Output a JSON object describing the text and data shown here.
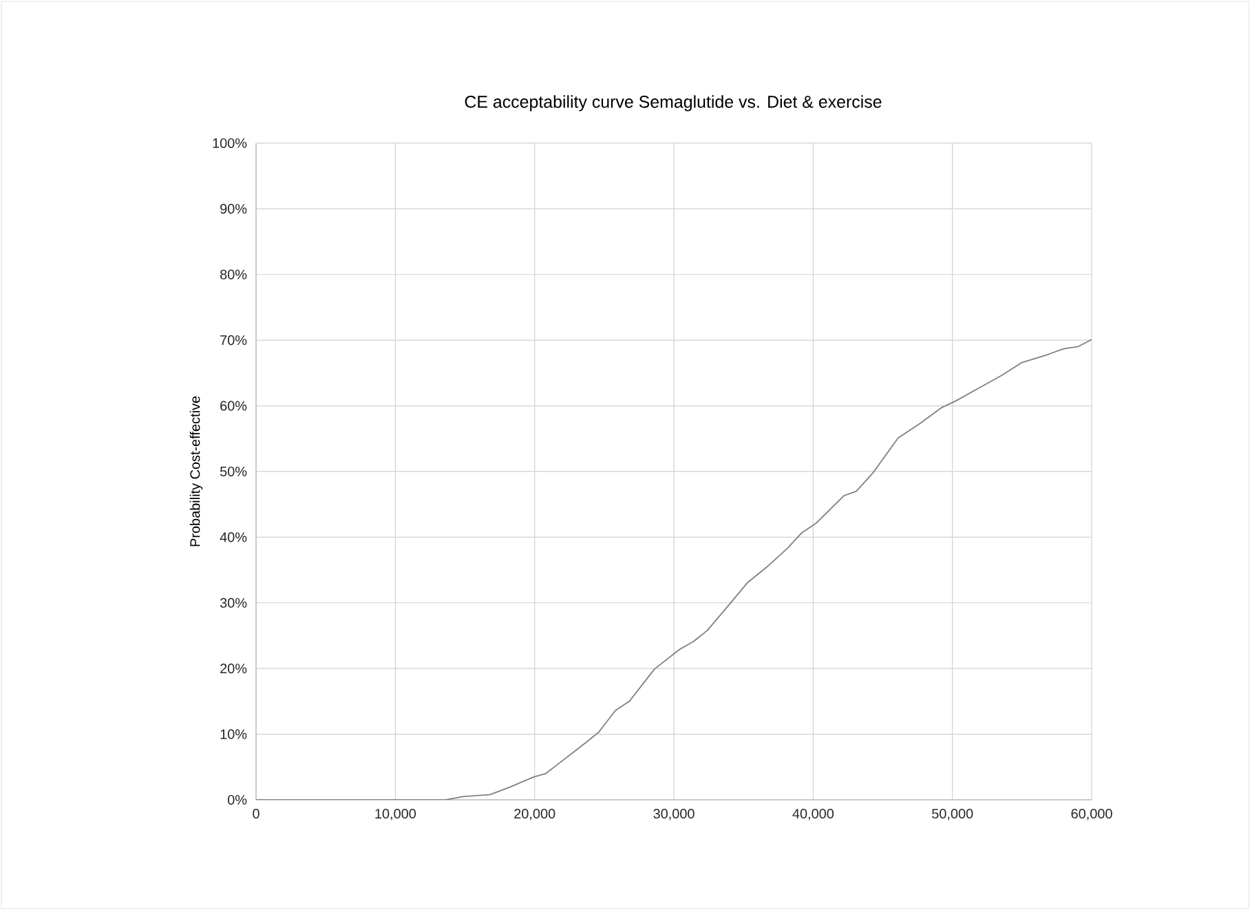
{
  "chart_data": {
    "type": "line",
    "title": "CE acceptability curve Semaglutide vs. Diet & exercise",
    "ylabel": "Probability Cost-effective",
    "xlim": [
      0,
      60000
    ],
    "xticks": [
      {
        "value": 0,
        "label": "0"
      },
      {
        "value": 10000,
        "label": "10,000"
      },
      {
        "value": 20000,
        "label": "20,000"
      },
      {
        "value": 30000,
        "label": "30,000"
      },
      {
        "value": 40000,
        "label": "40,000"
      },
      {
        "value": 50000,
        "label": "50,000"
      },
      {
        "value": 60000,
        "label": "60,000"
      }
    ],
    "ylim": [
      0,
      100
    ],
    "yticks": [
      {
        "value": 0,
        "label": "0%"
      },
      {
        "value": 10,
        "label": "10%"
      },
      {
        "value": 20,
        "label": "20%"
      },
      {
        "value": 30,
        "label": "30%"
      },
      {
        "value": 40,
        "label": "40%"
      },
      {
        "value": 50,
        "label": "50%"
      },
      {
        "value": 60,
        "label": "60%"
      },
      {
        "value": 70,
        "label": "70%"
      },
      {
        "value": 80,
        "label": "80%"
      },
      {
        "value": 90,
        "label": "90%"
      },
      {
        "value": 100,
        "label": "100%"
      }
    ],
    "grid": true,
    "marker": "none",
    "line_style": "solid",
    "series": [
      {
        "color": "#7f7f7f",
        "x": [
          0,
          13600,
          14900,
          16800,
          18300,
          19950,
          20800,
          21600,
          23600,
          24600,
          25800,
          26800,
          28600,
          30400,
          31400,
          32400,
          34000,
          35300,
          36700,
          38200,
          39200,
          40200,
          42200,
          43100,
          44300,
          46100,
          47600,
          49200,
          50200,
          51900,
          53500,
          55000,
          56700,
          58000,
          59000,
          60000
        ],
        "values": [
          0,
          0,
          0.5,
          0.8,
          2.0,
          3.5,
          4.0,
          5.3,
          8.6,
          10.3,
          13.6,
          15.0,
          19.9,
          22.9,
          24.1,
          25.8,
          29.8,
          33.1,
          35.5,
          38.4,
          40.7,
          42.1,
          46.3,
          47.0,
          49.8,
          55.1,
          57.2,
          59.7,
          60.7,
          62.7,
          64.6,
          66.6,
          67.7,
          68.7,
          69.0,
          70.1
        ]
      }
    ]
  }
}
